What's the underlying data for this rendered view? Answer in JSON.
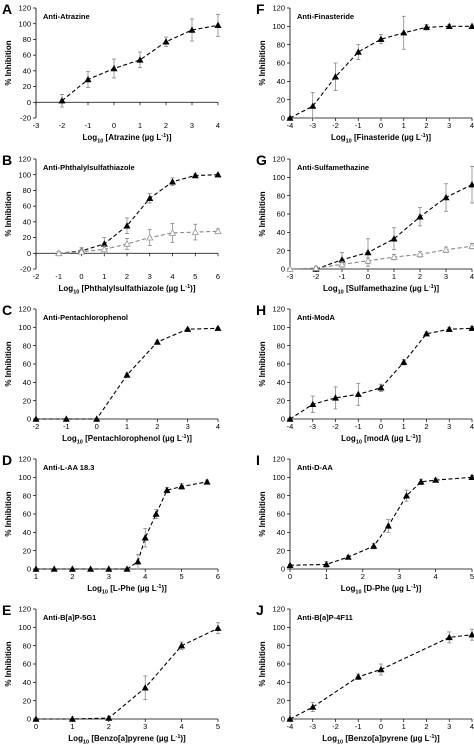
{
  "chart_data": [
    {
      "letter": "A",
      "type": "line",
      "title": "Anti-Atrazine",
      "xlabel_prefix": "Log",
      "xlabel_sub": "10",
      "xlabel_suffix": " [Atrazine (µg L",
      "xlabel_sup": "-1",
      "xlabel_end": ")]",
      "ylabel": "% Inhibition",
      "xlim": [
        -3,
        4
      ],
      "xticks": [
        -3,
        -2,
        -1,
        0,
        1,
        2,
        3,
        4
      ],
      "ylim": [
        -20,
        120
      ],
      "yticks": [
        -20,
        0,
        20,
        40,
        60,
        80,
        100,
        120
      ],
      "series": [
        {
          "marker": "filled",
          "x": [
            -2,
            -1,
            0,
            1,
            2,
            3,
            4
          ],
          "y": [
            2,
            29,
            43,
            54,
            77,
            92,
            98
          ],
          "err": [
            8,
            10,
            12,
            10,
            6,
            14,
            14
          ]
        }
      ]
    },
    {
      "letter": "F",
      "type": "line",
      "title": "Anti-Finasteride",
      "xlabel_prefix": "Log",
      "xlabel_sub": "10",
      "xlabel_suffix": " [Finasteride (µg L",
      "xlabel_sup": "-1",
      "xlabel_end": ")]",
      "ylabel": "% Inhibition",
      "xlim": [
        -4,
        4
      ],
      "xticks": [
        -4,
        -3,
        -2,
        -1,
        0,
        1,
        2,
        3,
        4
      ],
      "ylim": [
        0,
        120
      ],
      "yticks": [
        0,
        20,
        40,
        60,
        80,
        100,
        120
      ],
      "series": [
        {
          "marker": "filled",
          "x": [
            -4,
            -3,
            -2,
            -1,
            0,
            1,
            2,
            3,
            4
          ],
          "y": [
            0,
            13,
            45,
            72,
            86,
            93,
            99,
            100,
            100
          ],
          "err": [
            0,
            15,
            15,
            8,
            5,
            18,
            3,
            2,
            1
          ]
        }
      ]
    },
    {
      "letter": "B",
      "type": "line",
      "title": "Anti-Phthalylsulfathiazole",
      "xlabel_prefix": "Log",
      "xlabel_sub": "10",
      "xlabel_suffix": " [Phthalylsulfathiazole (µg L",
      "xlabel_sup": "-1",
      "xlabel_end": ")]",
      "ylabel": "% Inhibition",
      "xlim": [
        -2,
        6
      ],
      "xticks": [
        -2,
        -1,
        0,
        1,
        2,
        3,
        4,
        5,
        6
      ],
      "ylim": [
        -20,
        120
      ],
      "yticks": [
        -20,
        0,
        20,
        40,
        60,
        80,
        100,
        120
      ],
      "series": [
        {
          "marker": "filled",
          "x": [
            -1,
            0,
            1,
            2,
            3,
            4,
            5,
            6
          ],
          "y": [
            0,
            3,
            12,
            35,
            70,
            91,
            99,
            100
          ],
          "err": [
            2,
            4,
            8,
            10,
            6,
            5,
            2,
            1
          ]
        },
        {
          "marker": "open",
          "x": [
            -1,
            0,
            1,
            2,
            3,
            4,
            5,
            6
          ],
          "y": [
            0,
            2,
            5,
            12,
            20,
            26,
            27,
            28
          ],
          "err": [
            2,
            3,
            5,
            7,
            10,
            12,
            10,
            3
          ]
        }
      ]
    },
    {
      "letter": "G",
      "type": "line",
      "title": "Anti-Sulfamethazine",
      "xlabel_prefix": "Log",
      "xlabel_sub": "10",
      "xlabel_suffix": " [Sulfamethazine (µg L",
      "xlabel_sup": "-1",
      "xlabel_end": ")]",
      "ylabel": "% Inhibition",
      "xlim": [
        -3,
        4
      ],
      "xticks": [
        -3,
        -2,
        -1,
        0,
        1,
        2,
        3,
        4
      ],
      "ylim": [
        0,
        120
      ],
      "yticks": [
        0,
        20,
        40,
        60,
        80,
        100,
        120
      ],
      "series": [
        {
          "marker": "filled",
          "x": [
            -2,
            -1,
            0,
            1,
            2,
            3,
            4
          ],
          "y": [
            0,
            10,
            18,
            33,
            57,
            78,
            92
          ],
          "err": [
            2,
            8,
            15,
            12,
            10,
            15,
            20
          ]
        },
        {
          "marker": "open",
          "x": [
            -3,
            -2,
            -1,
            0,
            1,
            2,
            3,
            4
          ],
          "y": [
            0,
            1,
            5,
            9,
            13,
            16,
            21,
            25
          ],
          "err": [
            1,
            2,
            3,
            3,
            3,
            3,
            3,
            3
          ]
        }
      ]
    },
    {
      "letter": "C",
      "type": "line",
      "title": "Anti-Pentachlorophenol",
      "xlabel_prefix": "Log",
      "xlabel_sub": "10",
      "xlabel_suffix": " [Pentachlorophenol (µg L",
      "xlabel_sup": "-1",
      "xlabel_end": ")]",
      "ylabel": "% Inhibition",
      "xlim": [
        -2,
        4
      ],
      "xticks": [
        -2,
        -1,
        0,
        1,
        2,
        3,
        4
      ],
      "ylim": [
        0,
        120
      ],
      "yticks": [
        0,
        20,
        40,
        60,
        80,
        100,
        120
      ],
      "series": [
        {
          "marker": "filled",
          "x": [
            -2,
            -1,
            0,
            1,
            2,
            3,
            4
          ],
          "y": [
            0,
            0,
            0,
            48,
            84,
            98,
            99
          ],
          "err": [
            0,
            0,
            0,
            2,
            2,
            1,
            1
          ]
        }
      ]
    },
    {
      "letter": "H",
      "type": "line",
      "title": "Anti-ModA",
      "xlabel_prefix": "Log",
      "xlabel_sub": "10",
      "xlabel_suffix": " [modA (µg L",
      "xlabel_sup": "-1",
      "xlabel_end": ")]",
      "ylabel": "% Inhibition",
      "xlim": [
        -4,
        4
      ],
      "xticks": [
        -4,
        -3,
        -2,
        -1,
        0,
        1,
        2,
        3,
        4
      ],
      "ylim": [
        0,
        120
      ],
      "yticks": [
        0,
        20,
        40,
        60,
        80,
        100,
        120
      ],
      "series": [
        {
          "marker": "filled",
          "x": [
            -4,
            -3,
            -2,
            -1,
            0,
            1,
            2,
            3,
            4
          ],
          "y": [
            0,
            16,
            23,
            27,
            34,
            62,
            93,
            98,
            99
          ],
          "err": [
            0,
            9,
            12,
            12,
            4,
            3,
            2,
            2,
            2
          ]
        }
      ]
    },
    {
      "letter": "D",
      "type": "line",
      "title": "Anti-L-AA 18.3",
      "xlabel_prefix": "Log",
      "xlabel_sub": "10",
      "xlabel_suffix": " [L-Phe (µg L",
      "xlabel_sup": "-1",
      "xlabel_end": ")]",
      "ylabel": "% Inhibition",
      "xlim": [
        1,
        6
      ],
      "xticks": [
        1,
        2,
        3,
        4,
        5,
        6
      ],
      "ylim": [
        0,
        120
      ],
      "yticks": [
        0,
        20,
        40,
        60,
        80,
        100,
        120
      ],
      "series": [
        {
          "marker": "filled",
          "x": [
            1,
            1.5,
            2,
            2.5,
            3,
            3.5,
            3.8,
            4,
            4.3,
            4.6,
            5,
            5.7
          ],
          "y": [
            0,
            0,
            0,
            0,
            0,
            0,
            8,
            34,
            60,
            86,
            90,
            95
          ],
          "err": [
            0,
            0,
            0,
            0,
            0,
            0,
            8,
            10,
            5,
            3,
            3,
            2
          ]
        }
      ]
    },
    {
      "letter": "I",
      "type": "line",
      "title": "Anti-D-AA",
      "xlabel_prefix": "Log",
      "xlabel_sub": "10",
      "xlabel_suffix": " [D-Phe (µg L",
      "xlabel_sup": "-1",
      "xlabel_end": ")]",
      "ylabel": "% Inhibition",
      "xlim": [
        0,
        5
      ],
      "xticks": [
        0,
        1,
        2,
        3,
        4,
        5
      ],
      "ylim": [
        0,
        120
      ],
      "yticks": [
        0,
        20,
        40,
        60,
        80,
        100,
        120
      ],
      "series": [
        {
          "marker": "filled",
          "x": [
            0,
            1,
            1.6,
            2.3,
            2.7,
            3.2,
            3.6,
            4,
            5
          ],
          "y": [
            4,
            5,
            13,
            25,
            47,
            80,
            95,
            97,
            100
          ],
          "err": [
            1,
            3,
            2,
            3,
            7,
            6,
            3,
            2,
            2
          ]
        }
      ]
    },
    {
      "letter": "E",
      "type": "line",
      "title": "Anti-B[a]P-5G1",
      "xlabel_prefix": "Log",
      "xlabel_sub": "10",
      "xlabel_suffix": " [Benzo[a]pyrene (µg L",
      "xlabel_sup": "-1",
      "xlabel_end": ")]",
      "ylabel": "% Inhibition",
      "xlim": [
        0,
        5
      ],
      "xticks": [
        0,
        1,
        2,
        3,
        4,
        5
      ],
      "ylim": [
        0,
        120
      ],
      "yticks": [
        0,
        20,
        40,
        60,
        80,
        100,
        120
      ],
      "series": [
        {
          "marker": "filled",
          "x": [
            0,
            1,
            2,
            3,
            4,
            5
          ],
          "y": [
            0,
            0,
            1,
            34,
            80,
            99
          ],
          "err": [
            0,
            0,
            2,
            13,
            4,
            6
          ]
        }
      ]
    },
    {
      "letter": "J",
      "type": "line",
      "title": "Anti-B[a]P-4F11",
      "xlabel_prefix": "Log",
      "xlabel_sub": "10",
      "xlabel_suffix": " [Benzo[a]pyrene (µg L",
      "xlabel_sup": "-1",
      "xlabel_end": ")]",
      "ylabel": "% Inhibition",
      "xlim": [
        -4,
        4
      ],
      "xticks": [
        -4,
        -3,
        -2,
        -1,
        0,
        1,
        2,
        3,
        4
      ],
      "ylim": [
        0,
        120
      ],
      "yticks": [
        0,
        20,
        40,
        60,
        80,
        100,
        120
      ],
      "series": [
        {
          "marker": "filled",
          "x": [
            -4,
            -3,
            -1,
            0,
            3,
            4
          ],
          "y": [
            0,
            13,
            46,
            54,
            89,
            92
          ],
          "err": [
            0,
            5,
            3,
            6,
            6,
            6
          ]
        }
      ]
    }
  ]
}
